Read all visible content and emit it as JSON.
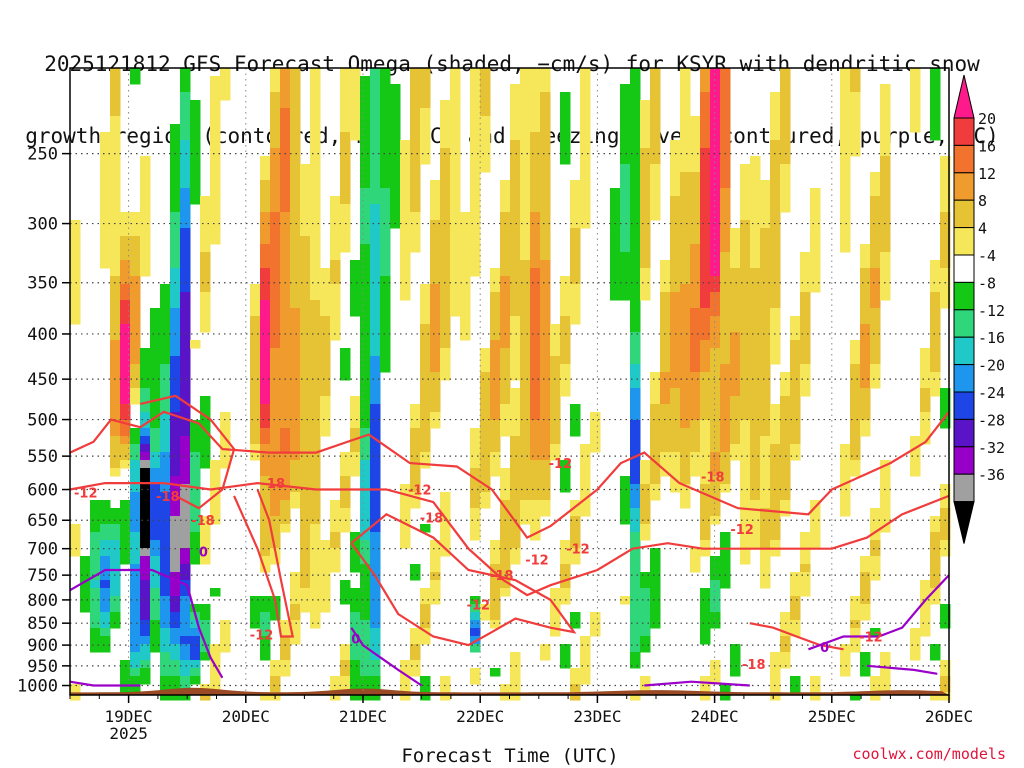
{
  "title": {
    "line1": "2025121812 GFS Forecast Omega (shaded, −cm/s) for KSYR with dendritic snow",
    "line2": "growth region (contoured, red, ºC) and freezing level (contoured, purple, ºC)"
  },
  "credit": "coolwx.com/models",
  "chart_data": {
    "type": "heatmap",
    "title": "2025121812 GFS Forecast Omega (shaded, −cm/s) for KSYR with dendritic snow growth region (contoured, red, ºC) and freezing level (contoured, purple, ºC)",
    "xlabel": "Forecast Time (UTC)",
    "ylabel": "",
    "x_ticks": [
      "19DEC",
      "20DEC",
      "21DEC",
      "22DEC",
      "23DEC",
      "24DEC",
      "25DEC",
      "26DEC"
    ],
    "x_tick_sublabel": "2025",
    "y_ticks": [
      250,
      300,
      350,
      400,
      450,
      500,
      550,
      600,
      650,
      700,
      750,
      800,
      850,
      900,
      950,
      1000
    ],
    "y_scale": "log-pressure (inverted)",
    "xlim": [
      "18DEC 12Z",
      "26DEC 00Z"
    ],
    "ylim": [
      1025,
      200
    ],
    "grid": true,
    "colorbar": {
      "labels": [
        20,
        16,
        12,
        8,
        4,
        -4,
        -8,
        -12,
        -16,
        -20,
        -24,
        -28,
        -32,
        -36
      ],
      "colors": [
        "#ff1a8c",
        "#f03c3c",
        "#f2732d",
        "#f09b2d",
        "#e6c235",
        "#f5e65a",
        "#ffffff",
        "#15c815",
        "#2fd67a",
        "#20c8c8",
        "#1e96ee",
        "#1e46e6",
        "#5a14c8",
        "#9600c8",
        "#a0a0a0",
        "#000000"
      ]
    },
    "contours": {
      "dendritic_labels": [
        "-12",
        "-18",
        "-18",
        "-12",
        "-18",
        "-12",
        "-18",
        "-12",
        "-18",
        "-12",
        "-12",
        "-12",
        "-18",
        "-12",
        "-18",
        "-12"
      ],
      "freezing_labels": [
        "0",
        "0",
        "0"
      ],
      "dendritic_color": "#f03c3c",
      "freezing_color": "#9b00c8"
    }
  }
}
